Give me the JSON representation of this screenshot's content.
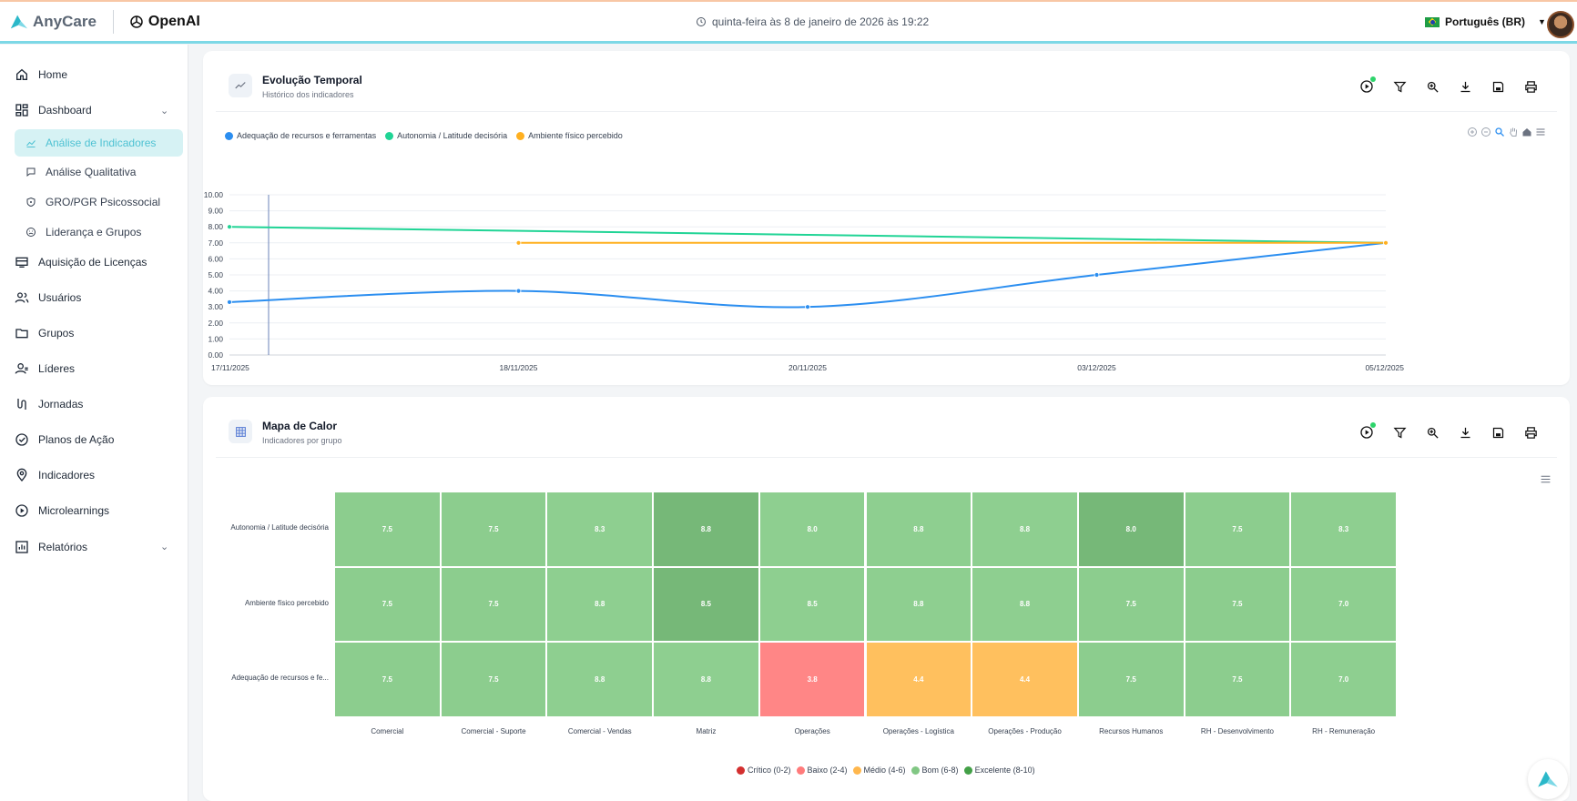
{
  "brand": {
    "name": "AnyCare",
    "partner": "OpenAI",
    "accent": "#4fc2d3"
  },
  "header": {
    "datetime": "quinta-feira às 8 de janeiro de 2026 às 19:22",
    "language": "Português (BR)"
  },
  "sidebar": {
    "items": [
      {
        "label": "Home",
        "icon": "home-icon"
      },
      {
        "label": "Dashboard",
        "icon": "dashboard-icon",
        "expanded": true
      },
      {
        "label": "Análise de Indicadores",
        "icon": "chart-area-icon",
        "sub": true,
        "active": true
      },
      {
        "label": "Análise Qualitativa",
        "icon": "comment-icon",
        "sub": true
      },
      {
        "label": "GRO/PGR Psicossocial",
        "icon": "shield-icon",
        "sub": true
      },
      {
        "label": "Liderança e Grupos",
        "icon": "face-icon",
        "sub": true
      },
      {
        "label": "Aquisição de Licenças",
        "icon": "card-icon"
      },
      {
        "label": "Usuários",
        "icon": "users-icon"
      },
      {
        "label": "Grupos",
        "icon": "folder-icon"
      },
      {
        "label": "Líderes",
        "icon": "leader-icon"
      },
      {
        "label": "Jornadas",
        "icon": "route-icon"
      },
      {
        "label": "Planos de Ação",
        "icon": "check-circle-icon"
      },
      {
        "label": "Indicadores",
        "icon": "location-icon"
      },
      {
        "label": "Microlearnings",
        "icon": "play-circle-icon"
      },
      {
        "label": "Relatórios",
        "icon": "report-icon",
        "expandable": true
      }
    ]
  },
  "timeline_card": {
    "title": "Evolução Temporal",
    "subtitle": "Histórico dos indicadores"
  },
  "heatmap_card": {
    "title": "Mapa de Calor",
    "subtitle": "Indicadores por grupo"
  },
  "chart_data": [
    {
      "type": "line",
      "x": [
        "17/11/2025",
        "18/11/2025",
        "20/11/2025",
        "03/12/2025",
        "05/12/2025"
      ],
      "ylim": [
        0,
        10
      ],
      "yticks": [
        "0.00",
        "1.00",
        "2.00",
        "3.00",
        "4.00",
        "5.00",
        "6.00",
        "7.00",
        "8.00",
        "9.00",
        "10.00"
      ],
      "grid": true,
      "legend_position": "top-left",
      "series": [
        {
          "name": "Adequação de recursos e ferramentas",
          "color": "#2b8ef0",
          "values": [
            3.3,
            4.0,
            3.0,
            5.0,
            7.0
          ]
        },
        {
          "name": "Autonomia / Latitude decisória",
          "color": "#20d495",
          "values": [
            8.0,
            null,
            null,
            null,
            7.0
          ]
        },
        {
          "name": "Ambiente físico percebido",
          "color": "#ffb020",
          "values": [
            null,
            7.0,
            null,
            null,
            7.0
          ]
        }
      ]
    },
    {
      "type": "heatmap",
      "rows": [
        "Autonomia / Latitude decisória",
        "Ambiente físico percebido",
        "Adequação de recursos e fe..."
      ],
      "columns": [
        "Comercial",
        "Comercial - Suporte",
        "Comercial - Vendas",
        "Matriz",
        "Operações",
        "Operações - Logística",
        "Operações - Produção",
        "Recursos Humanos",
        "RH - Desenvolvimento",
        "RH - Remuneração"
      ],
      "values": [
        [
          7.5,
          7.5,
          8.3,
          8.8,
          8.0,
          8.8,
          8.8,
          8.0,
          7.5,
          8.3
        ],
        [
          7.5,
          7.5,
          8.8,
          8.5,
          8.5,
          8.8,
          8.8,
          7.5,
          7.5,
          7.0
        ],
        [
          7.5,
          7.5,
          8.8,
          8.8,
          3.8,
          4.4,
          4.4,
          7.5,
          7.5,
          7.0
        ]
      ],
      "cell_colors": [
        [
          "#8ccd8e",
          "#8ccd8e",
          "#8ecf90",
          "#76b878",
          "#8ecf90",
          "#8ecf90",
          "#8ecf90",
          "#76b878",
          "#8ccd8e",
          "#8ecf90"
        ],
        [
          "#8ccd8e",
          "#8ccd8e",
          "#8ecf90",
          "#76b878",
          "#8ecf90",
          "#8ecf90",
          "#8ecf90",
          "#8ccd8e",
          "#8ccd8e",
          "#8ecf90"
        ],
        [
          "#8ccd8e",
          "#8ccd8e",
          "#8ecf90",
          "#8ecf90",
          "#ff8686",
          "#ffc05e",
          "#ffc05e",
          "#8ccd8e",
          "#8ccd8e",
          "#8ecf90"
        ]
      ],
      "legend": [
        {
          "label": "Crítico (0-2)",
          "color": "#d32f2f"
        },
        {
          "label": "Baixo (2-4)",
          "color": "#ff7b7b"
        },
        {
          "label": "Médio (4-6)",
          "color": "#ffb74d"
        },
        {
          "label": "Bom (6-8)",
          "color": "#81c784"
        },
        {
          "label": "Excelente (8-10)",
          "color": "#43a047"
        }
      ]
    }
  ]
}
